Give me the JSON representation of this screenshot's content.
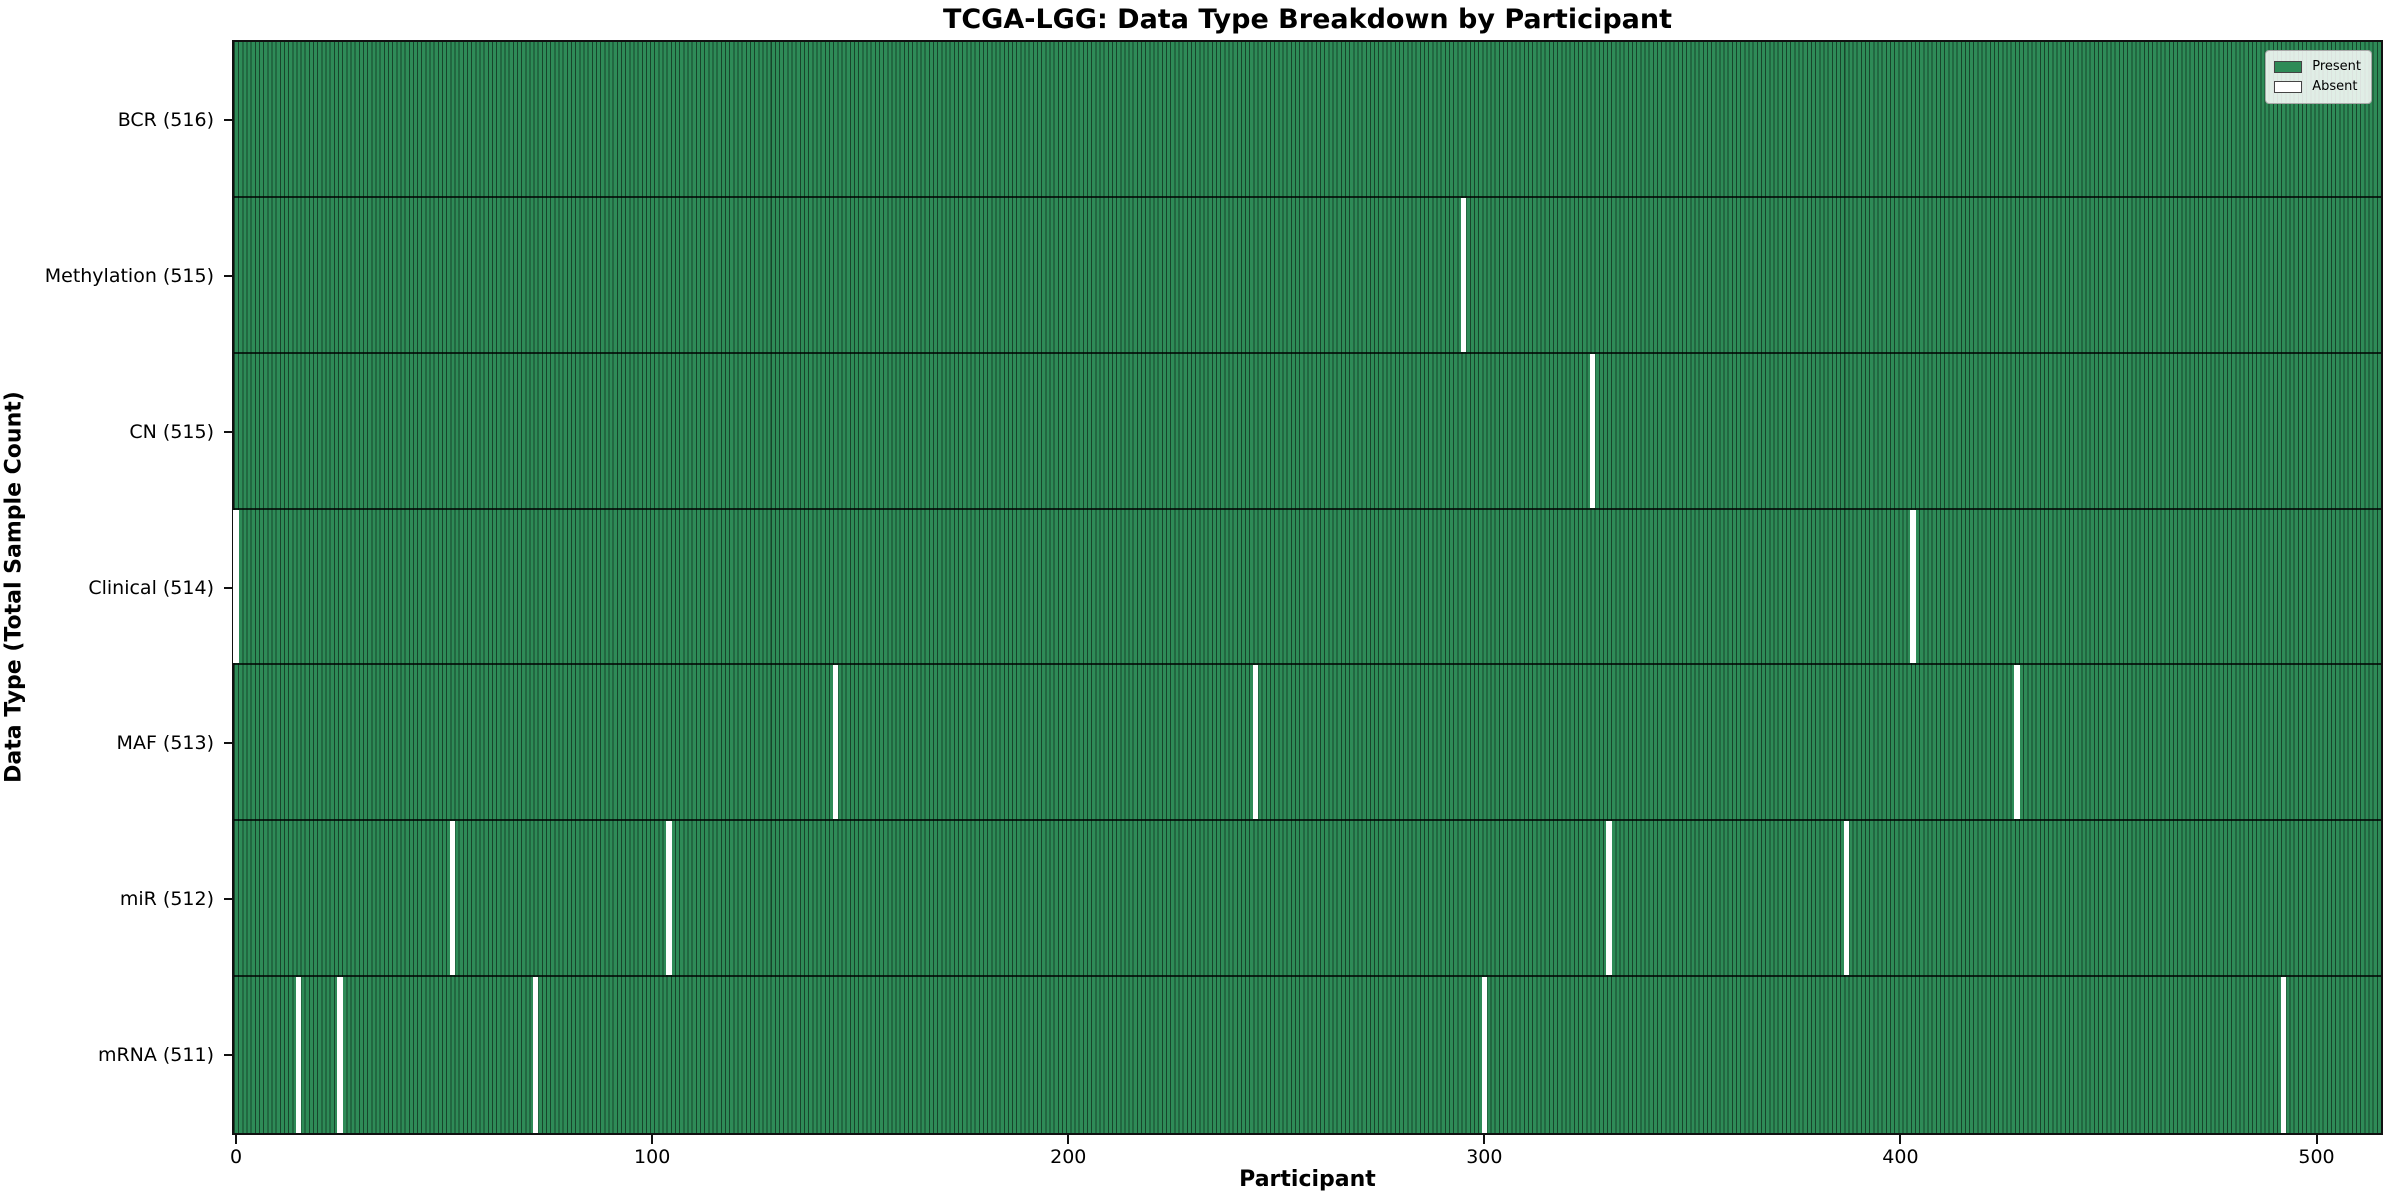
{
  "title": "TCGA-LGG: Data Type Breakdown by Participant",
  "chart_data": {
    "type": "heatmap",
    "title": "TCGA-LGG: Data Type Breakdown by Participant",
    "xlabel": "Participant",
    "ylabel": "Data Type (Total Sample Count)",
    "n_participants": 516,
    "xlim": [
      -0.5,
      515.5
    ],
    "x_ticks": [
      0,
      100,
      200,
      300,
      400,
      500
    ],
    "grid": false,
    "legend_position": "upper right",
    "rows": [
      {
        "label": "BCR (516)",
        "data_type": "BCR",
        "total": 516,
        "absent_participants": []
      },
      {
        "label": "Methylation (515)",
        "data_type": "Methylation",
        "total": 515,
        "absent_participants": [
          295
        ]
      },
      {
        "label": "CN (515)",
        "data_type": "CN",
        "total": 515,
        "absent_participants": [
          326
        ]
      },
      {
        "label": "Clinical (514)",
        "data_type": "Clinical",
        "total": 514,
        "absent_participants": [
          0,
          403
        ]
      },
      {
        "label": "MAF (513)",
        "data_type": "MAF",
        "total": 513,
        "absent_participants": [
          144,
          245,
          428
        ]
      },
      {
        "label": "miR (512)",
        "data_type": "miR",
        "total": 512,
        "absent_participants": [
          52,
          104,
          330,
          387
        ]
      },
      {
        "label": "mRNA (511)",
        "data_type": "mRNA",
        "total": 511,
        "absent_participants": [
          15,
          25,
          72,
          300,
          492
        ]
      }
    ],
    "legend": {
      "entries": [
        {
          "label": "Present",
          "color": "#2e8b57"
        },
        {
          "label": "Absent",
          "color": "#ffffff"
        }
      ]
    },
    "colors": {
      "present": "#2e8b57",
      "absent": "#ffffff",
      "bar_edge": "rgba(0,0,0,0.5)",
      "row_separator": "rgba(0,0,0,0.75)",
      "spine": "#111111"
    }
  }
}
